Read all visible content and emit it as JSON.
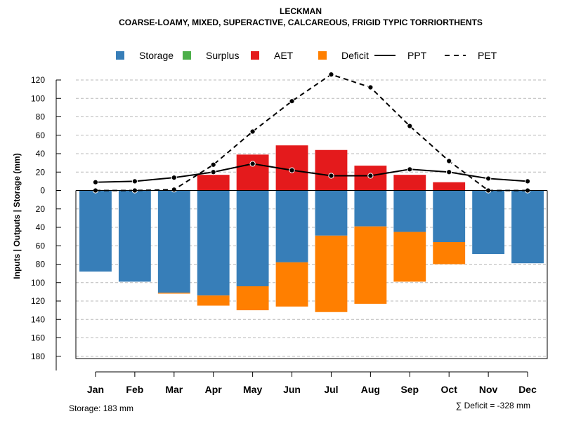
{
  "chart_data": {
    "type": "bar",
    "title": "LECKMAN",
    "subtitle": "COARSE-LOAMY, MIXED, SUPERACTIVE, CALCAREOUS, FRIGID TYPIC TORRIORTHENTS",
    "ylabel": "Inputs | Outputs | Storage     (mm)",
    "categories": [
      "Jan",
      "Feb",
      "Mar",
      "Apr",
      "May",
      "Jun",
      "Jul",
      "Aug",
      "Sep",
      "Oct",
      "Nov",
      "Dec"
    ],
    "ylim": [
      -183,
      130
    ],
    "yticks": [
      120,
      100,
      80,
      60,
      40,
      20,
      0,
      -20,
      -40,
      -60,
      -80,
      -100,
      -120,
      -140,
      -160,
      -180
    ],
    "ytick_labels": [
      "120",
      "100",
      "80",
      "60",
      "40",
      "20",
      "0",
      "20",
      "40",
      "60",
      "80",
      "100",
      "120",
      "140",
      "160",
      "180"
    ],
    "grid": true,
    "legend_position": "top",
    "legend": [
      {
        "label": "Storage",
        "kind": "box",
        "color": "#377EB8"
      },
      {
        "label": "Surplus",
        "kind": "box",
        "color": "#4DAF4A"
      },
      {
        "label": "AET",
        "kind": "box",
        "color": "#E41A1C"
      },
      {
        "label": "Deficit",
        "kind": "box",
        "color": "#FF7F00"
      },
      {
        "label": "PPT",
        "kind": "line-solid",
        "color": "#000000"
      },
      {
        "label": "PET",
        "kind": "line-dashed",
        "color": "#000000"
      }
    ],
    "series": [
      {
        "name": "Storage",
        "color": "#377EB8",
        "values": [
          88,
          99,
          111,
          114,
          104,
          78,
          49,
          39,
          45,
          56,
          69,
          79
        ]
      },
      {
        "name": "Deficit",
        "color": "#FF7F00",
        "values": [
          0,
          0,
          1,
          11,
          26,
          48,
          83,
          84,
          54,
          24,
          0,
          0
        ]
      },
      {
        "name": "Surplus",
        "color": "#4DAF4A",
        "values": [
          0,
          0,
          0,
          0,
          0,
          0,
          0,
          0,
          0,
          0,
          0,
          0
        ]
      },
      {
        "name": "AET",
        "color": "#E41A1C",
        "values": [
          0,
          0,
          0,
          17,
          39,
          49,
          44,
          27,
          17,
          9,
          0,
          0
        ]
      },
      {
        "name": "PPT",
        "color": "#000000",
        "values": [
          9,
          10,
          14,
          20,
          29,
          22,
          16,
          16,
          23,
          20,
          13,
          10
        ]
      },
      {
        "name": "PET",
        "color": "#000000",
        "values": [
          0,
          0,
          1,
          28,
          64,
          97,
          126,
          112,
          70,
          32,
          0,
          0
        ]
      }
    ],
    "footer_left": "Storage: 183 mm",
    "footer_right": "∑ Deficit = -328 mm"
  }
}
